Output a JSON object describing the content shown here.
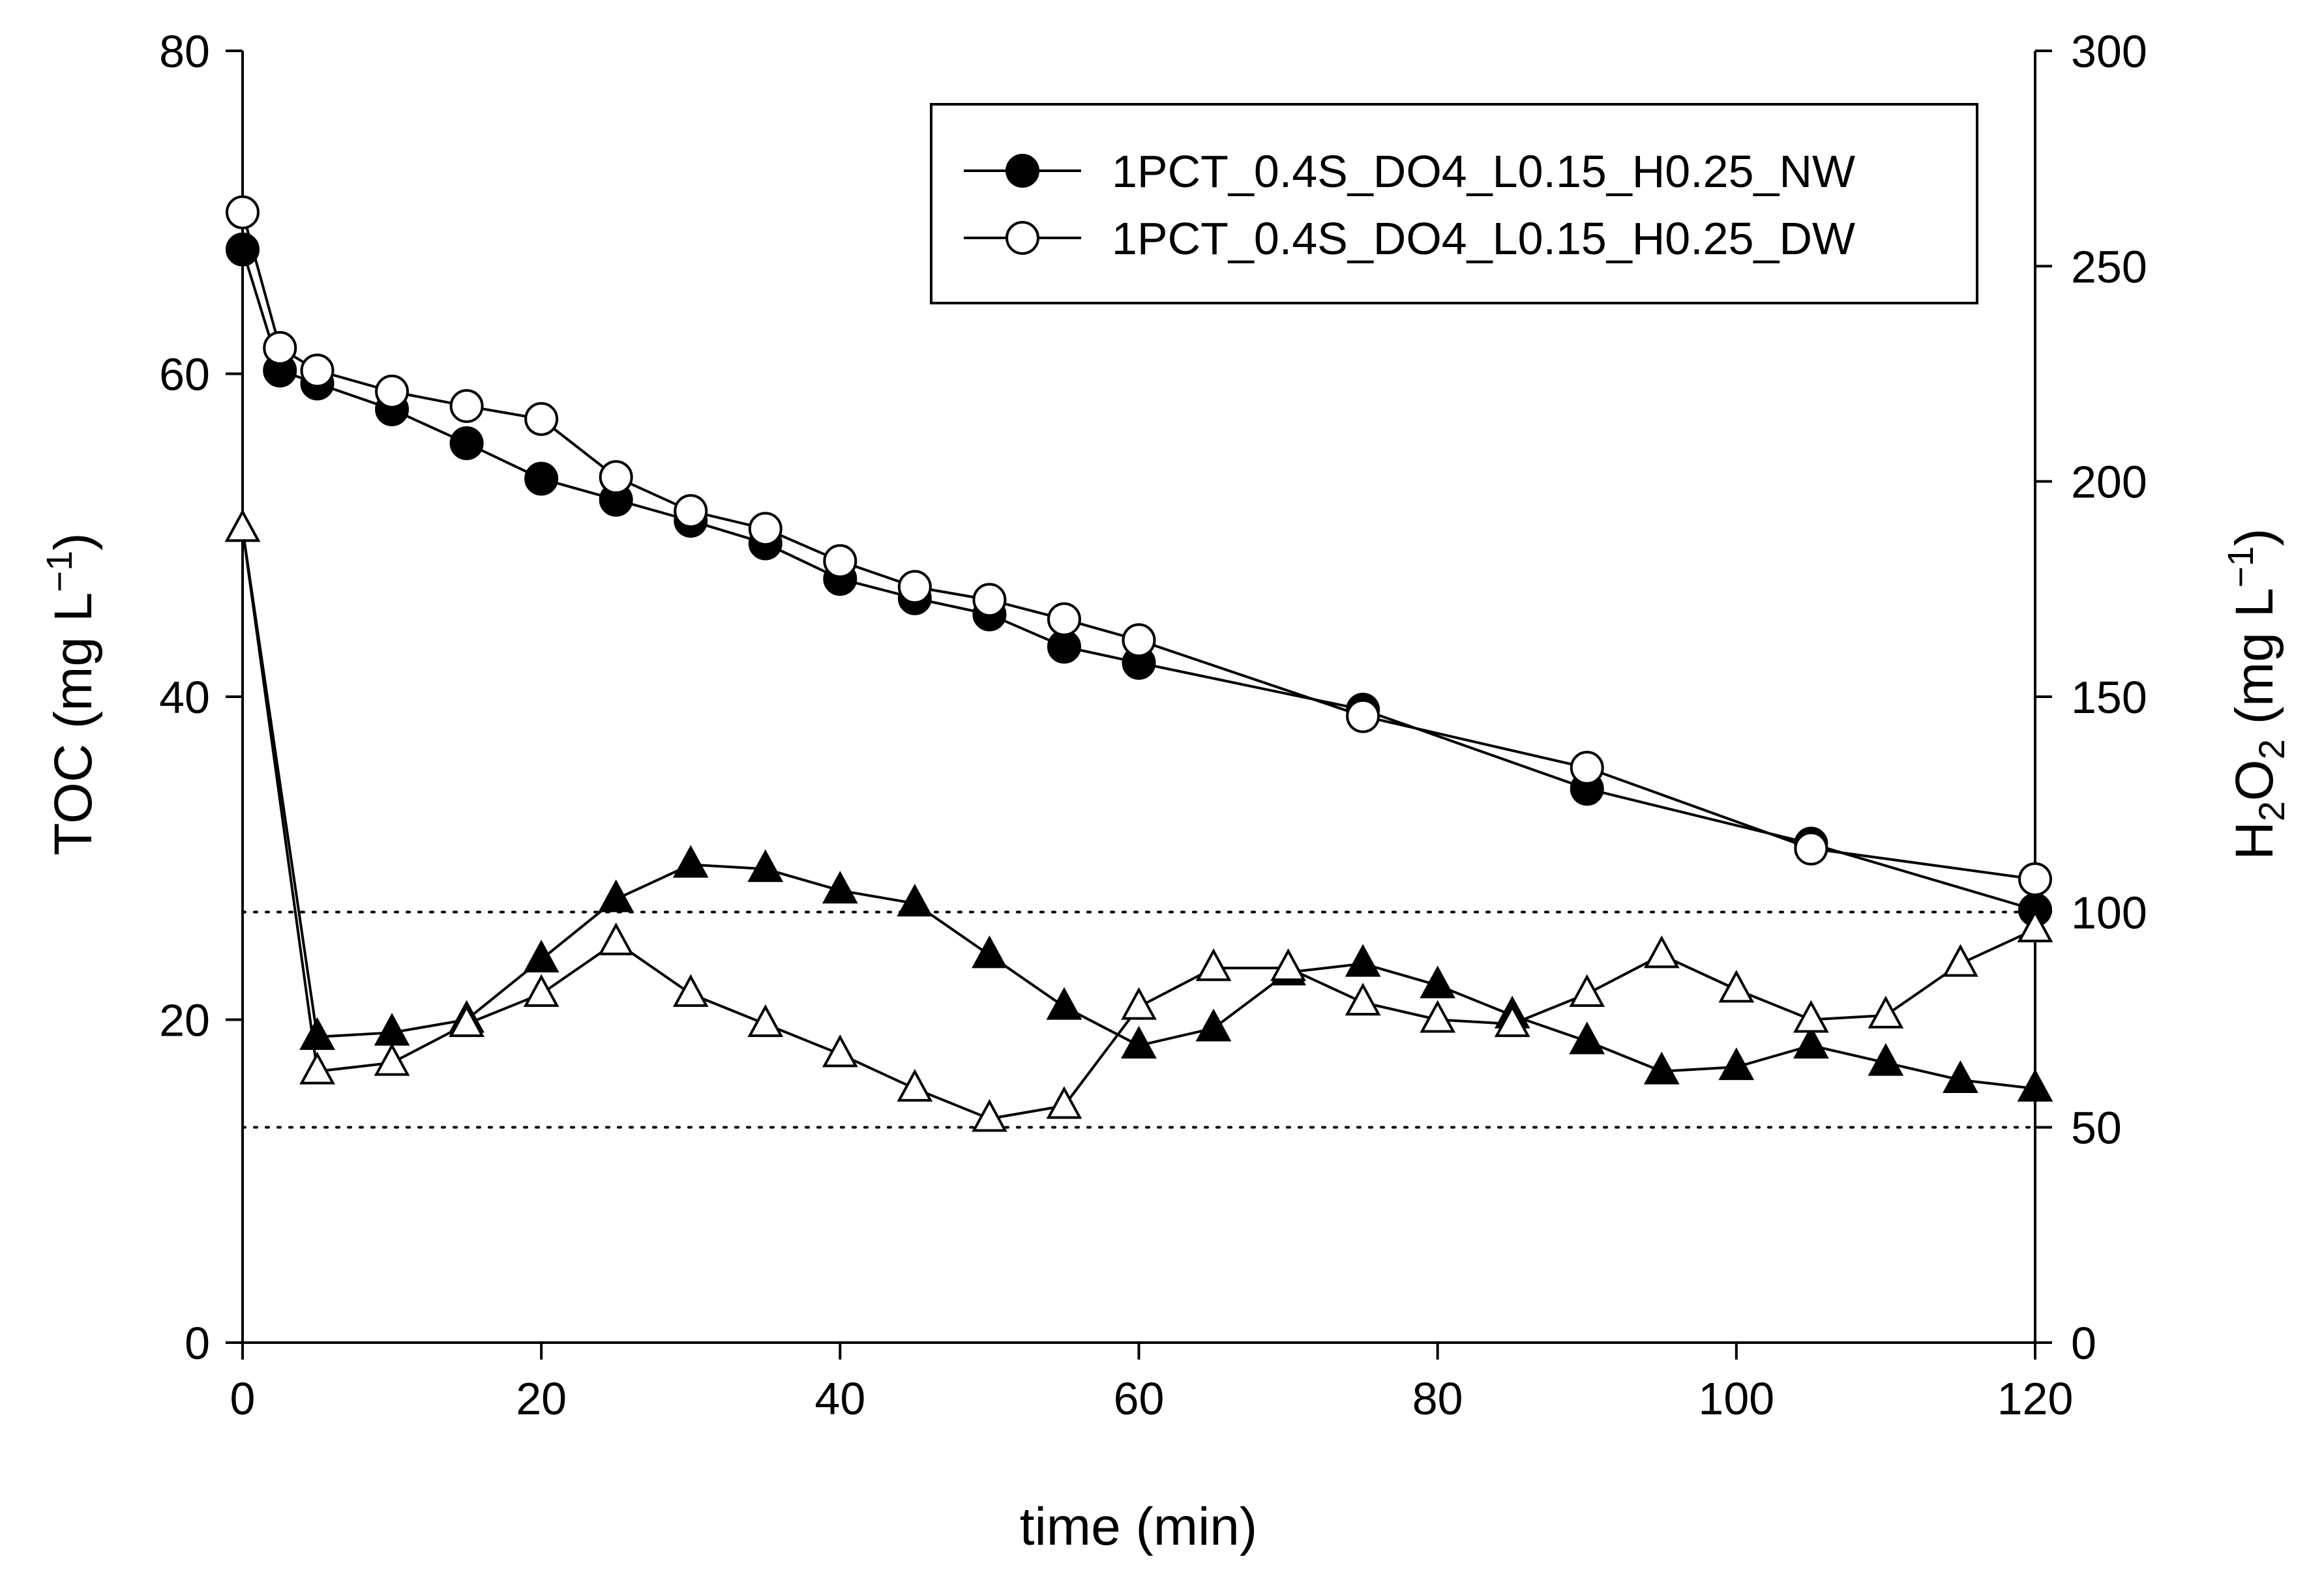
{
  "chart_data": {
    "type": "line",
    "xlabel": "time (min)",
    "ylabel_left": {
      "base": "TOC (mg L",
      "sup": "−1",
      "close": ")"
    },
    "ylabel_right": {
      "h": "H",
      "sub1": "2",
      "o": "O",
      "sub2": "2",
      "rest": " (mg L",
      "sup": "−1",
      "close": ")"
    },
    "xlim": [
      0,
      120
    ],
    "ylim_left": [
      0,
      80
    ],
    "ylim_right": [
      0,
      300
    ],
    "x_ticks": [
      "0",
      "20",
      "40",
      "60",
      "80",
      "100",
      "120"
    ],
    "y_left_ticks": [
      "0",
      "20",
      "40",
      "60",
      "80"
    ],
    "y_right_ticks": [
      "0",
      "50",
      "100",
      "150",
      "200",
      "250",
      "300"
    ],
    "reference_lines_right_axis": [
      50,
      100
    ],
    "legend": {
      "position": "top-right",
      "entries": [
        "1PCT_0.4S_DO4_L0.15_H0.25_NW",
        "1PCT_0.4S_DO4_L0.15_H0.25_DW"
      ]
    },
    "series": [
      {
        "name": "1PCT_0.4S_DO4_L0.15_H0.25_NW",
        "axis": "left",
        "marker": "filled-circle",
        "x": [
          0,
          2.5,
          5,
          10,
          15,
          20,
          25,
          30,
          35,
          40,
          45,
          50,
          55,
          60,
          75,
          90,
          105,
          120
        ],
        "y": [
          67.7,
          60.2,
          59.4,
          57.8,
          55.7,
          53.5,
          52.2,
          50.9,
          49.5,
          47.3,
          46.1,
          45.1,
          43.1,
          42.1,
          39.2,
          34.3,
          30.9,
          26.8
        ]
      },
      {
        "name": "1PCT_0.4S_DO4_L0.15_H0.25_DW",
        "axis": "left",
        "marker": "open-circle",
        "x": [
          0,
          2.5,
          5,
          10,
          15,
          20,
          25,
          30,
          35,
          40,
          45,
          50,
          55,
          60,
          75,
          90,
          105,
          120
        ],
        "y": [
          70.0,
          61.6,
          60.2,
          58.9,
          58.0,
          57.2,
          53.6,
          51.5,
          50.4,
          48.4,
          46.8,
          46.0,
          44.8,
          43.5,
          38.8,
          35.6,
          30.6,
          28.7
        ]
      },
      {
        "axis": "right",
        "marker": "filled-triangle",
        "x": [
          0,
          5,
          10,
          15,
          20,
          25,
          30,
          35,
          40,
          45,
          50,
          55,
          60,
          65,
          70,
          75,
          80,
          85,
          90,
          95,
          100,
          105,
          110,
          115,
          120
        ],
        "y": [
          189,
          71,
          72,
          75,
          89,
          103,
          111,
          110,
          105,
          102,
          90,
          78,
          69,
          73,
          86,
          88,
          83,
          76,
          70,
          63,
          64,
          69,
          65,
          61,
          59
        ]
      },
      {
        "axis": "right",
        "marker": "open-triangle",
        "x": [
          0,
          5,
          10,
          15,
          20,
          25,
          30,
          35,
          40,
          45,
          50,
          55,
          60,
          65,
          70,
          75,
          80,
          85,
          90,
          95,
          100,
          105,
          110,
          115,
          120
        ],
        "y": [
          189,
          63,
          65,
          74,
          81,
          93,
          81,
          74,
          67,
          59,
          52,
          55,
          78,
          87,
          87,
          79,
          75,
          74,
          81,
          90,
          82,
          75,
          76,
          88,
          96
        ]
      }
    ]
  }
}
